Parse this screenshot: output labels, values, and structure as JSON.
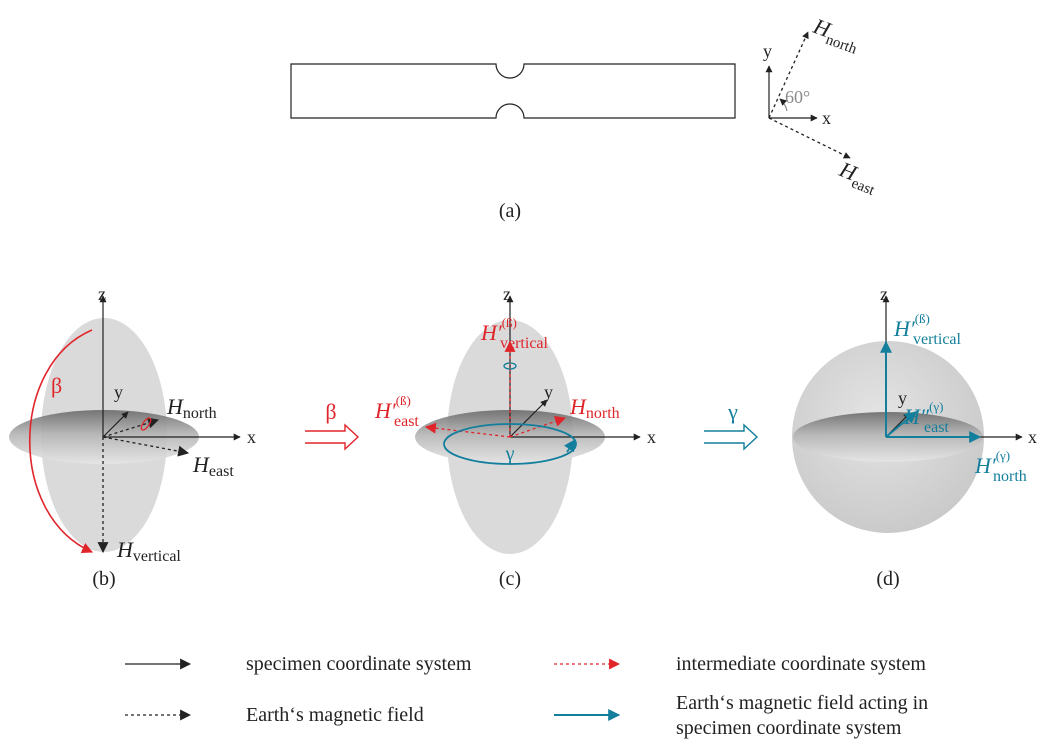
{
  "colors": {
    "black": "#222222",
    "red": "#e0252a",
    "teal": "#137f9c",
    "gray_text": "#8a8a8a",
    "ellipsoid_fill": "#d6d6d6"
  },
  "panel_a": {
    "caption": "(a)",
    "axis_y": "y",
    "axis_x": "x",
    "angle_label": "60°",
    "h_north": {
      "base": "H",
      "sub": "north"
    },
    "h_east": {
      "base": "H",
      "sub": "east"
    }
  },
  "panel_b": {
    "caption": "(b)",
    "axis_z": "z",
    "axis_y": "y",
    "axis_x": "x",
    "beta": "β",
    "h_north": {
      "base": "H",
      "sub": "north"
    },
    "h_east": {
      "base": "H",
      "sub": "east"
    },
    "h_vertical": {
      "base": "H",
      "sub": "vertical"
    }
  },
  "transition_1": {
    "label": "β"
  },
  "panel_c": {
    "caption": "(c)",
    "axis_z": "z",
    "axis_y": "y",
    "axis_x": "x",
    "gamma": "γ",
    "h_vertical": {
      "base": "H′",
      "sup": "(ß)",
      "sub": "vertical"
    },
    "h_east": {
      "base": "H′",
      "sup": "(ß)",
      "sub": "east"
    },
    "h_north": {
      "base": "H",
      "sub": "north"
    }
  },
  "transition_2": {
    "label": "γ"
  },
  "panel_d": {
    "caption": "(d)",
    "axis_z": "z",
    "axis_y": "y",
    "axis_x": "x",
    "h_vertical": {
      "base": "H′",
      "sup": "(ß)",
      "sub": "vertical"
    },
    "h_east": {
      "base": "H″",
      "sup": "(γ)",
      "sub": "east"
    },
    "h_north": {
      "base": "H′",
      "sup": "(γ)",
      "sub": "north"
    }
  },
  "legend": {
    "specimen": "specimen coordinate system",
    "intermediate": "intermediate coordinate system",
    "earth": "Earth‘s magnetic field",
    "acting_line1": "Earth‘s magnetic field acting in",
    "acting_line2": "specimen coordinate system"
  }
}
